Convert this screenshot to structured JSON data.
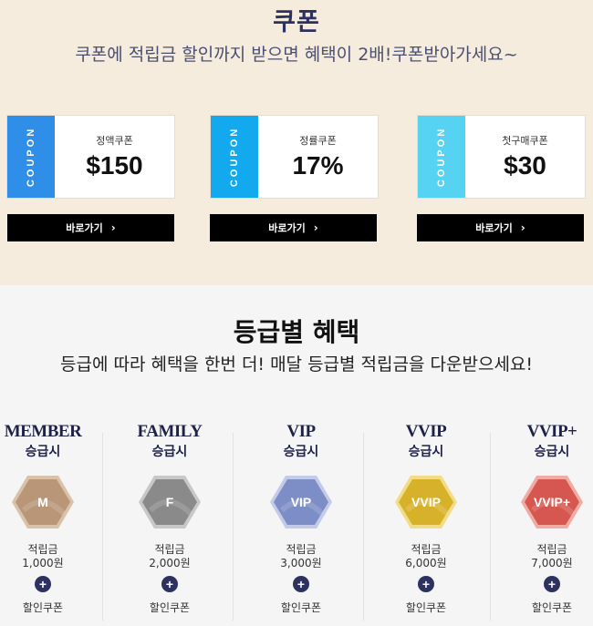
{
  "coupon": {
    "title": "쿠폰",
    "subtitle": "쿠폰에 적립금 할인까지 받으면 혜택이 2배!쿠폰받아가세요~",
    "cards": [
      {
        "tab": "COUPON",
        "name": "정액쿠폰",
        "value": "$150",
        "tab_color": "#2e8ee8",
        "button": "바로가기"
      },
      {
        "tab": "COUPON",
        "name": "정률쿠폰",
        "value": "17%",
        "tab_color": "#13a9ee",
        "button": "바로가기"
      },
      {
        "tab": "COUPON",
        "name": "첫구매쿠폰",
        "value": "$30",
        "tab_color": "#56d3f3",
        "button": "바로가기"
      }
    ],
    "button_chevron": "›"
  },
  "grade": {
    "title": "등급별 혜택",
    "subtitle": "등급에 따라 혜택을 한번 더! 매달 등급별 적립금을 다운받으세요!",
    "tiers": [
      {
        "name": "MEMBER",
        "level": "승급시",
        "badge": "M",
        "color": "#b89677",
        "rim": "#d8c2aa",
        "points_label": "적립금",
        "points": "1,000원",
        "plus": "+",
        "benefit": "할인쿠폰"
      },
      {
        "name": "FAMILY",
        "level": "승급시",
        "badge": "F",
        "color": "#8a8a8a",
        "rim": "#c8c8c8",
        "points_label": "적립금",
        "points": "2,000원",
        "plus": "+",
        "benefit": "할인쿠폰"
      },
      {
        "name": "VIP",
        "level": "승급시",
        "badge": "VIP",
        "color": "#7d8dc6",
        "rim": "#c3cbe9",
        "points_label": "적립금",
        "points": "3,000원",
        "plus": "+",
        "benefit": "할인쿠폰"
      },
      {
        "name": "VVIP",
        "level": "승급시",
        "badge": "VVIP",
        "color": "#d8b12a",
        "rim": "#f2dd86",
        "points_label": "적립금",
        "points": "6,000원",
        "plus": "+",
        "benefit": "할인쿠폰"
      },
      {
        "name": "VVIP+",
        "level": "승급시",
        "badge": "VVIP+",
        "color": "#d6574f",
        "rim": "#f0aca4",
        "points_label": "적립금",
        "points": "7,000원",
        "plus": "+",
        "benefit": "할인쿠폰"
      }
    ]
  }
}
